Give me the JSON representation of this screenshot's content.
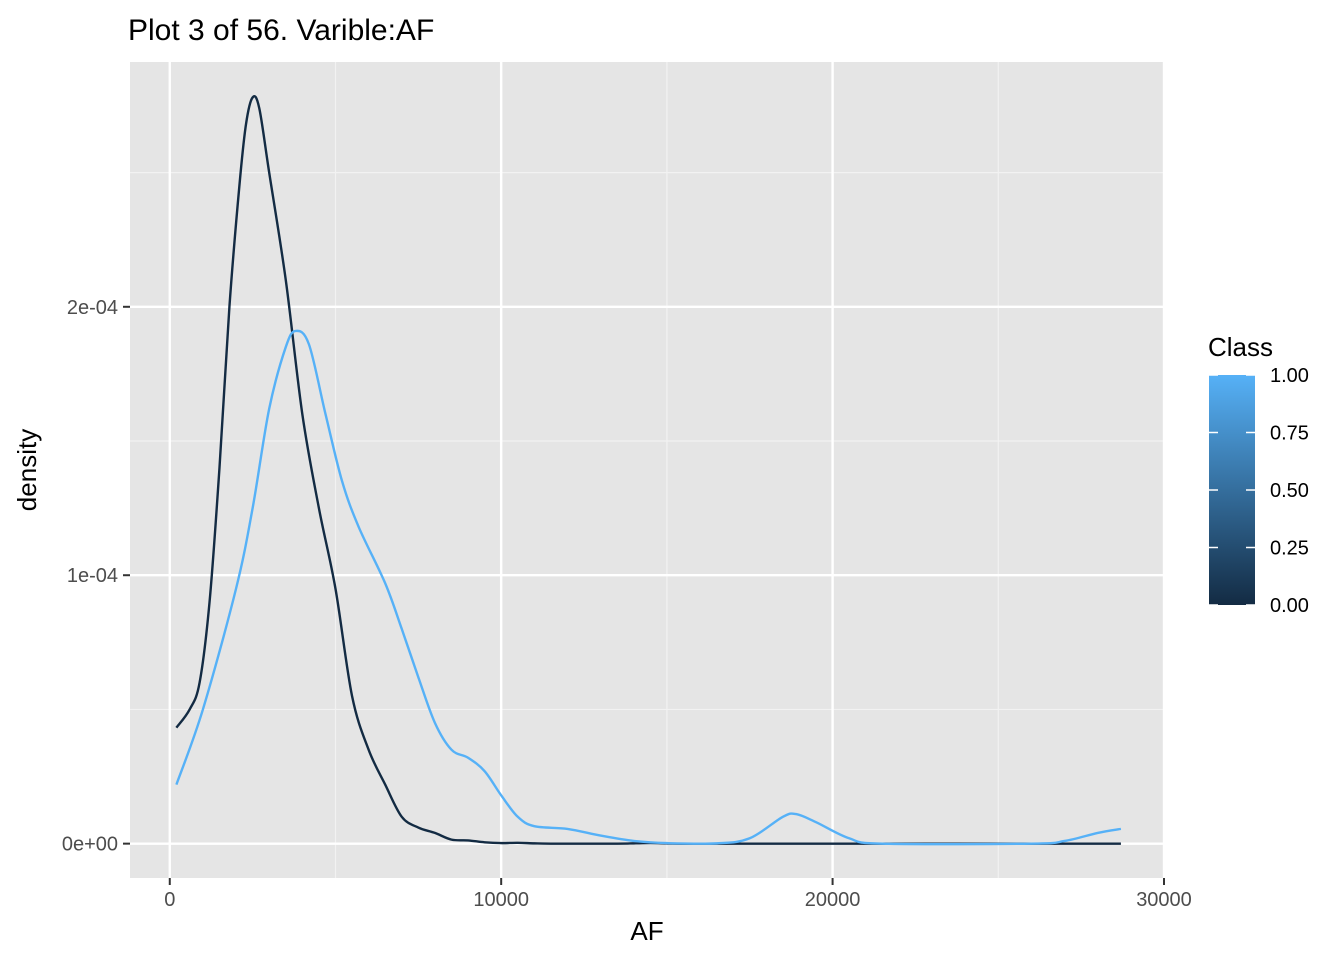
{
  "chart_data": {
    "type": "line",
    "title": "Plot 3 of 56. Varible:AF",
    "xlabel": "AF",
    "ylabel": "density",
    "xlim": [
      -1200,
      30000
    ],
    "ylim": [
      -1.28e-05,
      0.0002912
    ],
    "grid": true,
    "x_ticks": [
      0,
      10000,
      20000,
      30000
    ],
    "x_tick_labels": [
      "0",
      "10000",
      "20000",
      "30000"
    ],
    "y_ticks": [
      0,
      0.0001,
      0.0002
    ],
    "y_tick_labels": [
      "0e+00",
      "1e-04",
      "2e-04"
    ],
    "x_minor": [
      5000,
      15000,
      25000
    ],
    "y_minor": [
      5e-05,
      0.00015,
      0.00025
    ],
    "legend": {
      "title": "Class",
      "type": "colorbar",
      "placement": "right",
      "range": [
        0,
        1
      ],
      "breaks": [
        0,
        0.25,
        0.5,
        0.75,
        1
      ],
      "break_labels": [
        "0.00",
        "0.25",
        "0.50",
        "0.75",
        "1.00"
      ],
      "low_color": "#132B43",
      "high_color": "#56B1F7"
    },
    "series": [
      {
        "class_value": 0,
        "color": "#132B43",
        "points": [
          [
            200,
            4.32e-05
          ],
          [
            600,
            5e-05
          ],
          [
            900,
            6e-05
          ],
          [
            1200,
            9e-05
          ],
          [
            1500,
            0.00014
          ],
          [
            1800,
            0.0002
          ],
          [
            2100,
            0.000245
          ],
          [
            2300,
            0.000268
          ],
          [
            2500,
            0.000278
          ],
          [
            2700,
            0.000274
          ],
          [
            3000,
            0.00025
          ],
          [
            3500,
            0.00021
          ],
          [
            4000,
            0.00016
          ],
          [
            4500,
            0.000125
          ],
          [
            5000,
            9.5e-05
          ],
          [
            5500,
            5.5e-05
          ],
          [
            6000,
            3.5e-05
          ],
          [
            6500,
            2.2e-05
          ],
          [
            7000,
            1e-05
          ],
          [
            7500,
            6e-06
          ],
          [
            8000,
            4e-06
          ],
          [
            8500,
            1.5e-06
          ],
          [
            9000,
            1.2e-06
          ],
          [
            9500,
            5e-07
          ],
          [
            10000,
            2e-07
          ],
          [
            10500,
            3e-07
          ],
          [
            11000,
            1e-07
          ],
          [
            11500,
            0.0
          ],
          [
            13500,
            0.0
          ],
          [
            14000,
            1e-07
          ],
          [
            14500,
            2e-07
          ],
          [
            15000,
            1e-07
          ],
          [
            15500,
            0.0
          ],
          [
            20000,
            0.0
          ],
          [
            25000,
            0.0
          ],
          [
            28700,
            0.0
          ]
        ]
      },
      {
        "class_value": 1,
        "color": "#56B1F7",
        "points": [
          [
            200,
            2.2e-05
          ],
          [
            1000,
            5e-05
          ],
          [
            2000,
            9.5e-05
          ],
          [
            2500,
            0.000125
          ],
          [
            3000,
            0.000162
          ],
          [
            3500,
            0.000185
          ],
          [
            3800,
            0.000191
          ],
          [
            4200,
            0.000186
          ],
          [
            4700,
            0.00016
          ],
          [
            5200,
            0.000135
          ],
          [
            5700,
            0.000118
          ],
          [
            6500,
            9.7e-05
          ],
          [
            7000,
            8e-05
          ],
          [
            7500,
            6.2e-05
          ],
          [
            8000,
            4.5e-05
          ],
          [
            8500,
            3.5e-05
          ],
          [
            9000,
            3.2e-05
          ],
          [
            9500,
            2.7e-05
          ],
          [
            10000,
            1.8e-05
          ],
          [
            10500,
            1e-05
          ],
          [
            11000,
            6.5e-06
          ],
          [
            12000,
            5.5e-06
          ],
          [
            13000,
            3e-06
          ],
          [
            14000,
            1e-06
          ],
          [
            15000,
            2e-07
          ],
          [
            16500,
            1e-07
          ],
          [
            17500,
            2e-06
          ],
          [
            18500,
            1e-05
          ],
          [
            18900,
            1.1e-05
          ],
          [
            19500,
            8e-06
          ],
          [
            20500,
            2e-06
          ],
          [
            21500,
            0.0
          ],
          [
            26000,
            0.0
          ],
          [
            27000,
            1e-06
          ],
          [
            28000,
            4e-06
          ],
          [
            28700,
            5.5e-06
          ]
        ]
      }
    ]
  }
}
